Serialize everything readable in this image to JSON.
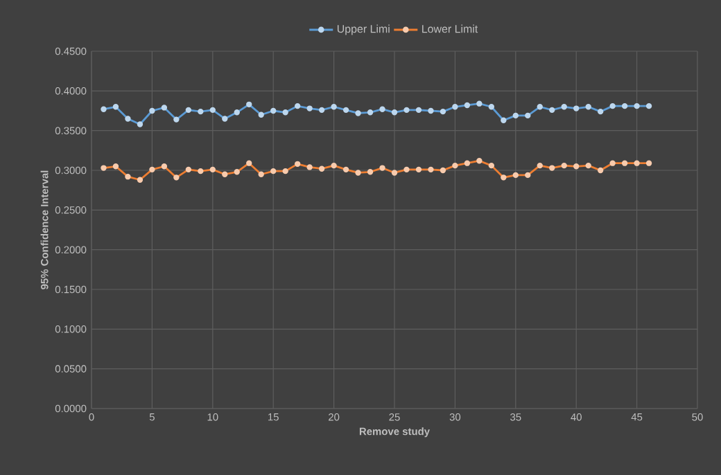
{
  "chart_data": {
    "type": "line",
    "xlabel": "Remove study",
    "ylabel": "95% Confidence Interval",
    "x": [
      1,
      2,
      3,
      4,
      5,
      6,
      7,
      8,
      9,
      10,
      11,
      12,
      13,
      14,
      15,
      16,
      17,
      18,
      19,
      20,
      21,
      22,
      23,
      24,
      25,
      26,
      27,
      28,
      29,
      30,
      31,
      32,
      33,
      34,
      35,
      36,
      37,
      38,
      39,
      40,
      41,
      42,
      43,
      44,
      45,
      46
    ],
    "series": [
      {
        "name": "Upper Limi",
        "color": "#5b9bd5",
        "values": [
          0.377,
          0.38,
          0.365,
          0.358,
          0.375,
          0.379,
          0.364,
          0.376,
          0.374,
          0.376,
          0.365,
          0.373,
          0.383,
          0.37,
          0.375,
          0.373,
          0.381,
          0.378,
          0.376,
          0.38,
          0.376,
          0.372,
          0.373,
          0.377,
          0.373,
          0.376,
          0.376,
          0.375,
          0.374,
          0.38,
          0.382,
          0.384,
          0.38,
          0.363,
          0.369,
          0.369,
          0.38,
          0.376,
          0.38,
          0.378,
          0.38,
          0.374,
          0.381,
          0.381,
          0.381,
          0.381
        ]
      },
      {
        "name": "Lower Limit",
        "color": "#ed7d31",
        "values": [
          0.303,
          0.305,
          0.292,
          0.288,
          0.301,
          0.305,
          0.291,
          0.301,
          0.299,
          0.301,
          0.295,
          0.298,
          0.309,
          0.295,
          0.299,
          0.299,
          0.308,
          0.304,
          0.302,
          0.306,
          0.301,
          0.297,
          0.298,
          0.303,
          0.297,
          0.301,
          0.301,
          0.301,
          0.3,
          0.306,
          0.309,
          0.312,
          0.306,
          0.291,
          0.294,
          0.294,
          0.306,
          0.303,
          0.306,
          0.305,
          0.306,
          0.3,
          0.309,
          0.309,
          0.309,
          0.309
        ]
      }
    ],
    "xlim": [
      0,
      50
    ],
    "xticks": [
      0,
      5,
      10,
      15,
      20,
      25,
      30,
      35,
      40,
      45,
      50
    ],
    "ylim": [
      0,
      0.45
    ],
    "yticks": [
      {
        "value": 0,
        "label": "0.0000"
      },
      {
        "value": 0.05,
        "label": "0.0500"
      },
      {
        "value": 0.1,
        "label": "0.1000"
      },
      {
        "value": 0.15,
        "label": "0.1500"
      },
      {
        "value": 0.2,
        "label": "0.2000"
      },
      {
        "value": 0.25,
        "label": "0.2500"
      },
      {
        "value": 0.3,
        "label": "0.3000"
      },
      {
        "value": 0.35,
        "label": "0.3500"
      },
      {
        "value": 0.4,
        "label": "0.4000"
      },
      {
        "value": 0.45,
        "label": "0.4500"
      }
    ],
    "grid": true,
    "legend": "top",
    "marker": "circle",
    "line_style": "solid"
  }
}
